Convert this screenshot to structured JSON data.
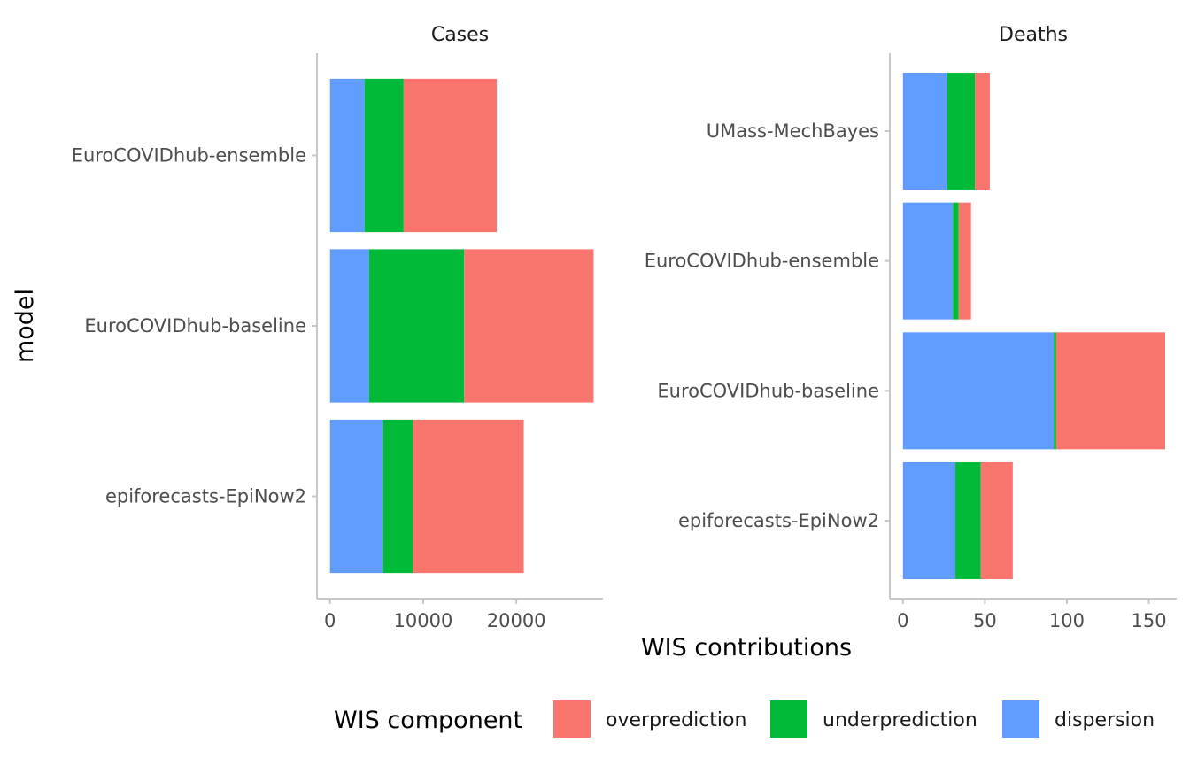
{
  "chart_data": {
    "type": "bar",
    "orientation": "horizontal",
    "stacked": true,
    "xlabel": "WIS contributions",
    "ylabel": "model",
    "legend": {
      "title": "WIS component",
      "placement": "bottom",
      "items": [
        {
          "name": "overprediction",
          "color": "#F8766D"
        },
        {
          "name": "underprediction",
          "color": "#00BA38"
        },
        {
          "name": "dispersion",
          "color": "#619CFF"
        }
      ]
    },
    "stack_order": [
      "dispersion",
      "underprediction",
      "overprediction"
    ],
    "grid": false,
    "facets": [
      {
        "title": "Cases",
        "xlim": [
          -1400,
          29300
        ],
        "xticks": [
          0,
          10000,
          20000
        ],
        "xtick_labels": [
          "0",
          "10000",
          "20000"
        ],
        "categories": [
          "EuroCOVIDhub-ensemble",
          "EuroCOVIDhub-baseline",
          "epiforecasts-EpiNow2"
        ],
        "series": [
          {
            "name": "dispersion",
            "values": [
              3700,
              4200,
              5700
            ]
          },
          {
            "name": "underprediction",
            "values": [
              4200,
              10200,
              3200
            ]
          },
          {
            "name": "overprediction",
            "values": [
              10000,
              13900,
              11900
            ]
          }
        ]
      },
      {
        "title": "Deaths",
        "xlim": [
          -8,
          167
        ],
        "xticks": [
          0,
          50,
          100,
          150
        ],
        "xtick_labels": [
          "0",
          "50",
          "100",
          "150"
        ],
        "categories": [
          "UMass-MechBayes",
          "EuroCOVIDhub-ensemble",
          "EuroCOVIDhub-baseline",
          "epiforecasts-EpiNow2"
        ],
        "series": [
          {
            "name": "dispersion",
            "values": [
              27,
              30.5,
              92,
              32
            ]
          },
          {
            "name": "underprediction",
            "values": [
              17,
              3.5,
              1.5,
              15.5
            ]
          },
          {
            "name": "overprediction",
            "values": [
              9,
              7.5,
              66.5,
              19.5
            ]
          }
        ]
      }
    ]
  }
}
